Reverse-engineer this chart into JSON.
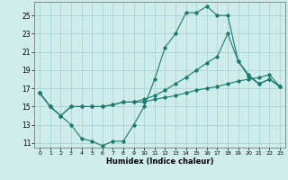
{
  "xlabel": "Humidex (Indice chaleur)",
  "background_color": "#ceecea",
  "grid_color": "#aad4d0",
  "line_color": "#1a7a6e",
  "xlim": [
    -0.5,
    23.5
  ],
  "ylim": [
    10.5,
    26.5
  ],
  "yticks": [
    11,
    13,
    15,
    17,
    19,
    21,
    23,
    25
  ],
  "xticks": [
    0,
    1,
    2,
    3,
    4,
    5,
    6,
    7,
    8,
    9,
    10,
    11,
    12,
    13,
    14,
    15,
    16,
    17,
    18,
    19,
    20,
    21,
    22,
    23
  ],
  "line1_x": [
    0,
    1,
    2,
    3,
    4,
    5,
    6,
    7,
    8,
    9,
    10,
    11,
    12,
    13,
    14,
    15,
    16,
    17,
    18,
    19,
    20,
    21,
    22,
    23
  ],
  "line1_y": [
    16.5,
    15.0,
    14.0,
    13.0,
    11.5,
    11.2,
    10.7,
    11.2,
    11.2,
    13.0,
    15.0,
    18.0,
    21.5,
    23.0,
    25.3,
    25.3,
    26.0,
    25.0,
    25.0,
    20.0,
    18.5,
    17.5,
    18.0,
    17.2
  ],
  "line2_x": [
    0,
    1,
    2,
    3,
    4,
    5,
    6,
    7,
    8,
    9,
    10,
    11,
    12,
    13,
    14,
    15,
    16,
    17,
    18,
    19,
    20,
    21,
    22,
    23
  ],
  "line2_y": [
    16.5,
    15.0,
    14.0,
    15.0,
    15.0,
    15.0,
    15.0,
    15.2,
    15.5,
    15.5,
    15.8,
    16.2,
    16.8,
    17.5,
    18.2,
    19.0,
    19.8,
    20.5,
    23.0,
    20.0,
    18.3,
    17.5,
    18.0,
    17.2
  ],
  "line3_x": [
    0,
    1,
    2,
    3,
    4,
    5,
    6,
    7,
    8,
    9,
    10,
    11,
    12,
    13,
    14,
    15,
    16,
    17,
    18,
    19,
    20,
    21,
    22,
    23
  ],
  "line3_y": [
    16.5,
    15.0,
    14.0,
    15.0,
    15.0,
    15.0,
    15.0,
    15.2,
    15.5,
    15.5,
    15.5,
    15.8,
    16.0,
    16.2,
    16.5,
    16.8,
    17.0,
    17.2,
    17.5,
    17.8,
    18.0,
    18.2,
    18.5,
    17.2
  ]
}
